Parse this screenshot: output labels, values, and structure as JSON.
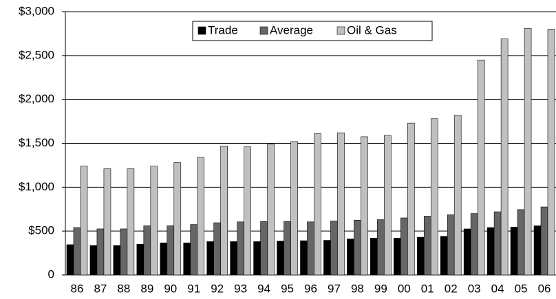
{
  "chart_data": {
    "type": "bar",
    "categories": [
      "86",
      "87",
      "88",
      "89",
      "90",
      "91",
      "92",
      "93",
      "94",
      "95",
      "96",
      "97",
      "98",
      "99",
      "00",
      "01",
      "02",
      "03",
      "04",
      "05",
      "06"
    ],
    "series": [
      {
        "name": "Trade",
        "color": "#000000",
        "values": [
          345,
          335,
          335,
          350,
          365,
          365,
          380,
          380,
          380,
          385,
          390,
          395,
          410,
          420,
          420,
          430,
          440,
          525,
          540,
          545,
          560
        ]
      },
      {
        "name": "Average",
        "color": "#666666",
        "values": [
          540,
          525,
          525,
          560,
          560,
          575,
          595,
          605,
          610,
          610,
          605,
          615,
          625,
          630,
          650,
          670,
          685,
          700,
          720,
          745,
          775
        ]
      },
      {
        "name": "Oil & Gas",
        "color": "#c0c0c0",
        "values": [
          1240,
          1210,
          1210,
          1240,
          1280,
          1340,
          1470,
          1460,
          1490,
          1520,
          1610,
          1620,
          1575,
          1590,
          1730,
          1780,
          1820,
          2450,
          2690,
          2810,
          2800
        ]
      }
    ],
    "ylim": [
      0,
      3000
    ],
    "yticks": [
      0,
      {
        "value": 500,
        "label": "$500"
      },
      {
        "value": 1000,
        "label": "$1,000"
      },
      {
        "value": 1500,
        "label": "$1,500"
      },
      {
        "value": 2000,
        "label": "$2,000"
      },
      {
        "value": 2500,
        "label": "$2,500"
      },
      {
        "value": 3000,
        "label": "$3,000"
      }
    ],
    "grid": true,
    "legend": "top"
  }
}
